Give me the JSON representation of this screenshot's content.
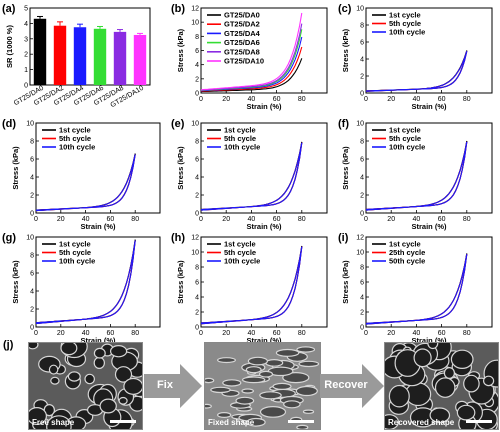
{
  "figure": {
    "panel_j": {
      "label": "(j)",
      "photos": [
        {
          "caption": "Free shape"
        },
        {
          "caption": "Fixed shape"
        },
        {
          "caption": "Recovered shape"
        }
      ],
      "arrows": [
        {
          "label": "Fix"
        },
        {
          "label": "Recover"
        }
      ]
    }
  },
  "colors": {
    "black": "#000000",
    "red": "#ff0000",
    "blue": "#1a1aff",
    "green": "#33dd33",
    "purple": "#8a2be2",
    "magenta": "#ff33ff",
    "arrow": "#9a9a9a"
  },
  "chart_data": [
    {
      "panel": "(a)",
      "type": "bar",
      "ylabel": "SR (1000 %)",
      "ylim": [
        0,
        5
      ],
      "yticks": [
        0,
        1,
        2,
        3,
        4,
        5
      ],
      "categories": [
        "GT25/DA0",
        "GT25/DA2",
        "GT25/DA4",
        "GT25/DA6",
        "GT25/DA8",
        "GT25/DA10"
      ],
      "values": [
        4.3,
        3.85,
        3.75,
        3.65,
        3.45,
        3.25
      ],
      "errors": [
        0.15,
        0.25,
        0.2,
        0.15,
        0.15,
        0.1
      ],
      "bar_colors": [
        "#000000",
        "#ff0000",
        "#1a1aff",
        "#33dd33",
        "#8a2be2",
        "#ff33ff"
      ]
    },
    {
      "panel": "(b)",
      "type": "line",
      "xlabel": "Strain (%)",
      "ylabel": "Stress (kPa)",
      "xlim": [
        0,
        100
      ],
      "ylim": [
        0,
        12
      ],
      "xticks": [
        0,
        20,
        40,
        60,
        80
      ],
      "yticks": [
        0,
        2,
        4,
        6,
        8,
        10,
        12
      ],
      "legend_position": "top-left",
      "series": [
        {
          "name": "GT25/DA0",
          "color": "#000000",
          "max_stress": 4.9
        },
        {
          "name": "GT25/DA2",
          "color": "#ff0000",
          "max_stress": 6.5
        },
        {
          "name": "GT25/DA4",
          "color": "#1a1aff",
          "max_stress": 7.9
        },
        {
          "name": "GT25/DA6",
          "color": "#33dd33",
          "max_stress": 9.0
        },
        {
          "name": "GT25/DA8",
          "color": "#8a2be2",
          "max_stress": 9.8
        },
        {
          "name": "GT25/DA10",
          "color": "#ff33ff",
          "max_stress": 11.3
        }
      ]
    },
    {
      "panel": "(c)",
      "type": "line",
      "xlabel": "Strain (%)",
      "ylabel": "Stress (kPa)",
      "xlim": [
        0,
        100
      ],
      "ylim": [
        0,
        10
      ],
      "xticks": [
        0,
        20,
        40,
        60,
        80
      ],
      "yticks": [
        0,
        2,
        4,
        6,
        8,
        10
      ],
      "legend_position": "top-left",
      "series": [
        {
          "name": "1st cycle",
          "color": "#000000",
          "max_stress": 5.0
        },
        {
          "name": "5th cycle",
          "color": "#ff0000",
          "max_stress": 4.9
        },
        {
          "name": "10th cycle",
          "color": "#1a1aff",
          "max_stress": 4.9
        }
      ]
    },
    {
      "panel": "(d)",
      "type": "line",
      "xlabel": "Strain (%)",
      "ylabel": "Stress (kPa)",
      "xlim": [
        0,
        100
      ],
      "ylim": [
        0,
        10
      ],
      "xticks": [
        0,
        20,
        40,
        60,
        80
      ],
      "yticks": [
        0,
        2,
        4,
        6,
        8,
        10
      ],
      "legend_position": "top-left",
      "series": [
        {
          "name": "1st cycle",
          "color": "#000000",
          "max_stress": 6.6
        },
        {
          "name": "5th cycle",
          "color": "#ff0000",
          "max_stress": 6.5
        },
        {
          "name": "10th cycle",
          "color": "#1a1aff",
          "max_stress": 6.5
        }
      ]
    },
    {
      "panel": "(e)",
      "type": "line",
      "xlabel": "Strain (%)",
      "ylabel": "Stress (kPa)",
      "xlim": [
        0,
        100
      ],
      "ylim": [
        0,
        10
      ],
      "xticks": [
        0,
        20,
        40,
        60,
        80
      ],
      "yticks": [
        0,
        2,
        4,
        6,
        8,
        10
      ],
      "legend_position": "top-left",
      "series": [
        {
          "name": "1st cycle",
          "color": "#000000",
          "max_stress": 7.9
        },
        {
          "name": "5th cycle",
          "color": "#ff0000",
          "max_stress": 7.8
        },
        {
          "name": "10th cycle",
          "color": "#1a1aff",
          "max_stress": 7.8
        }
      ]
    },
    {
      "panel": "(f)",
      "type": "line",
      "xlabel": "Strain (%)",
      "ylabel": "Stress (kPa)",
      "xlim": [
        0,
        100
      ],
      "ylim": [
        0,
        10
      ],
      "xticks": [
        0,
        20,
        40,
        60,
        80
      ],
      "yticks": [
        0,
        2,
        4,
        6,
        8,
        10
      ],
      "legend_position": "top-left",
      "series": [
        {
          "name": "1st cycle",
          "color": "#000000",
          "max_stress": 8.0
        },
        {
          "name": "5th cycle",
          "color": "#ff0000",
          "max_stress": 7.9
        },
        {
          "name": "10th cycle",
          "color": "#1a1aff",
          "max_stress": 7.9
        }
      ]
    },
    {
      "panel": "(g)",
      "type": "line",
      "xlabel": "Strain (%)",
      "ylabel": "Stress (kPa)",
      "xlim": [
        0,
        100
      ],
      "ylim": [
        0,
        10
      ],
      "xticks": [
        0,
        20,
        40,
        60,
        80
      ],
      "yticks": [
        0,
        2,
        4,
        6,
        8,
        10
      ],
      "legend_position": "top-left",
      "series": [
        {
          "name": "1st cycle",
          "color": "#000000",
          "max_stress": 9.7
        },
        {
          "name": "5th cycle",
          "color": "#ff0000",
          "max_stress": 9.6
        },
        {
          "name": "10th cycle",
          "color": "#1a1aff",
          "max_stress": 9.6
        }
      ]
    },
    {
      "panel": "(h)",
      "type": "line",
      "xlabel": "Strain (%)",
      "ylabel": "Stress (kPa)",
      "xlim": [
        0,
        100
      ],
      "ylim": [
        0,
        12
      ],
      "xticks": [
        0,
        20,
        40,
        60,
        80
      ],
      "yticks": [
        0,
        2,
        4,
        6,
        8,
        10,
        12
      ],
      "legend_position": "top-left",
      "series": [
        {
          "name": "1st cycle",
          "color": "#000000",
          "max_stress": 10.8
        },
        {
          "name": "5th cycle",
          "color": "#ff0000",
          "max_stress": 10.7
        },
        {
          "name": "10th cycle",
          "color": "#1a1aff",
          "max_stress": 10.7
        }
      ]
    },
    {
      "panel": "(i)",
      "type": "line",
      "xlabel": "Strain (%)",
      "ylabel": "Stress (kPa)",
      "xlim": [
        0,
        100
      ],
      "ylim": [
        0,
        12
      ],
      "xticks": [
        0,
        20,
        40,
        60,
        80
      ],
      "yticks": [
        0,
        2,
        4,
        6,
        8,
        10,
        12
      ],
      "legend_position": "top-left",
      "series": [
        {
          "name": "1st cycle",
          "color": "#000000",
          "max_stress": 9.8
        },
        {
          "name": "25th cycle",
          "color": "#ff0000",
          "max_stress": 9.7
        },
        {
          "name": "50th cycle",
          "color": "#1a1aff",
          "max_stress": 9.7
        }
      ]
    }
  ]
}
